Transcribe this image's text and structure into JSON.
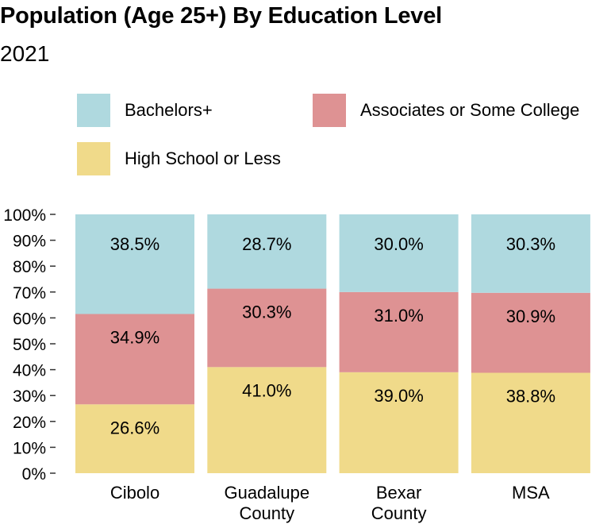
{
  "chart_data": {
    "type": "bar",
    "stacked": true,
    "title": "Population (Age 25+) By Education Level",
    "subtitle": "2021",
    "categories": [
      [
        "Cibolo"
      ],
      [
        "Guadalupe",
        "County"
      ],
      [
        "Bexar",
        "County"
      ],
      [
        "MSA"
      ]
    ],
    "series": [
      {
        "name": "High School or Less",
        "color": "#f0da8a",
        "values": [
          26.6,
          41.0,
          39.0,
          38.8
        ],
        "labels": [
          "26.6%",
          "41.0%",
          "39.0%",
          "38.8%"
        ]
      },
      {
        "name": "Associates or Some College",
        "color": "#de9293",
        "values": [
          34.9,
          30.3,
          31.0,
          30.9
        ],
        "labels": [
          "34.9%",
          "30.3%",
          "31.0%",
          "30.9%"
        ]
      },
      {
        "name": "Bachelors+",
        "color": "#afd9df",
        "values": [
          38.5,
          28.7,
          30.0,
          30.3
        ],
        "labels": [
          "38.5%",
          "28.7%",
          "30.0%",
          "30.3%"
        ]
      }
    ],
    "ylim": [
      0,
      100
    ],
    "yticks": [
      "0%",
      "10%",
      "20%",
      "30%",
      "40%",
      "50%",
      "60%",
      "70%",
      "80%",
      "90%",
      "100%"
    ],
    "legend": [
      "Bachelors+",
      "Associates or Some College",
      "High School or Less"
    ],
    "legend_position": "top",
    "grid": false
  }
}
